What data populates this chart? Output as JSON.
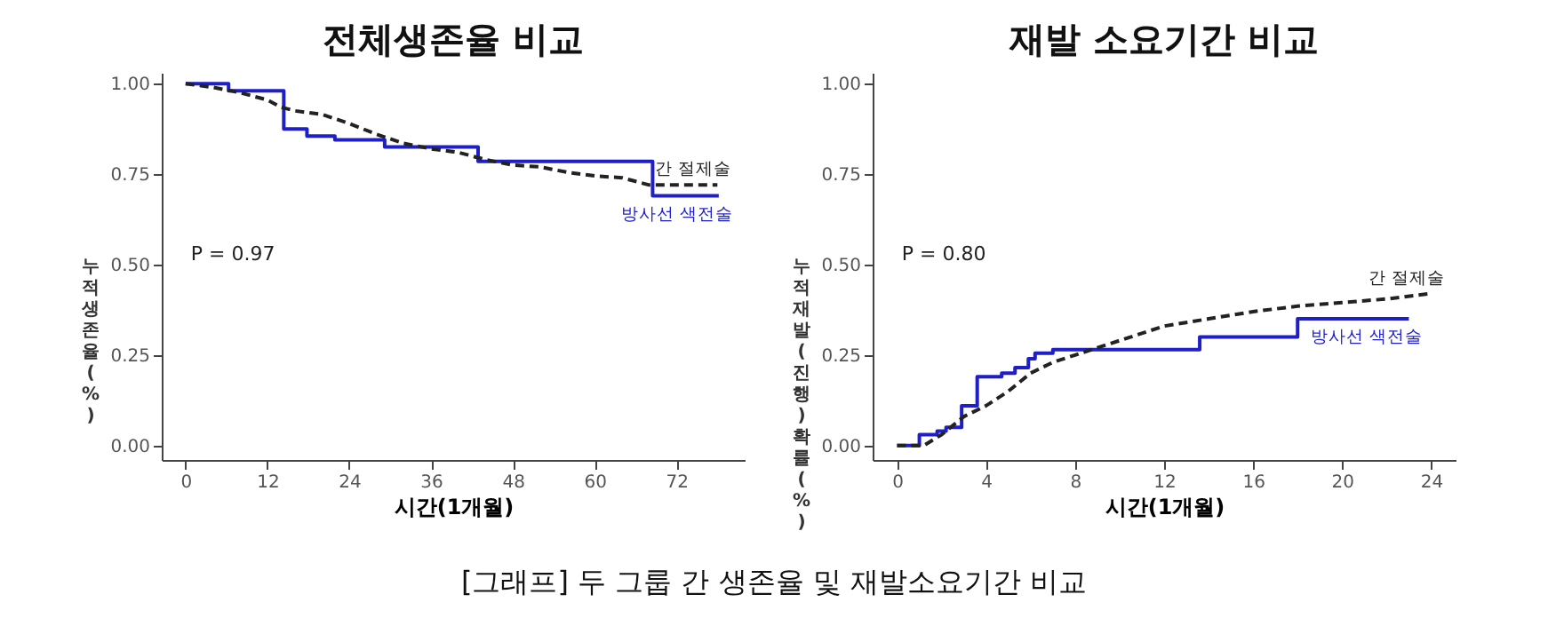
{
  "chart_data": [
    {
      "type": "line",
      "title": "전체생존율 비교",
      "xlabel": "시간(1개월)",
      "ylabel": "누적 생존율 (%)",
      "xlim": [
        -3.5,
        82
      ],
      "ylim": [
        -0.04,
        1.03
      ],
      "xticks": [
        0,
        12,
        24,
        36,
        48,
        60,
        72
      ],
      "yticks": [
        {
          "value": 0,
          "label": "0.00"
        },
        {
          "value": 0.25,
          "label": "0.25"
        },
        {
          "value": 0.5,
          "label": "0.50"
        },
        {
          "value": 0.75,
          "label": "0.75"
        },
        {
          "value": 1,
          "label": "1.00"
        }
      ],
      "grid": false,
      "legend": false,
      "annotations": [
        "P = 0.97"
      ],
      "series": [
        {
          "name": "간 절제술",
          "type": "line",
          "line_style": "dashed",
          "color": "#222222",
          "x": [
            0,
            4,
            8,
            12,
            14,
            16,
            20,
            24,
            28,
            32,
            36,
            40,
            44,
            48,
            52,
            56,
            60,
            64,
            68,
            72,
            78
          ],
          "values": [
            1.0,
            0.99,
            0.975,
            0.955,
            0.935,
            0.925,
            0.915,
            0.89,
            0.86,
            0.835,
            0.82,
            0.81,
            0.79,
            0.775,
            0.77,
            0.755,
            0.745,
            0.74,
            0.72,
            0.72,
            0.72
          ]
        },
        {
          "name": "방사선 색전술",
          "type": "step",
          "line_style": "solid",
          "color": "#1f1fc8",
          "x": [
            0,
            6.3,
            14.4,
            17.8,
            21.9,
            29.2,
            42.9,
            68.5,
            78.2
          ],
          "values": [
            1.0,
            0.98,
            0.875,
            0.855,
            0.845,
            0.825,
            0.785,
            0.69,
            0.69
          ]
        }
      ]
    },
    {
      "type": "line",
      "title": "재발 소요기간 비교",
      "xlabel": "시간(1개월)",
      "ylabel": "누적 재발(진행) 확률 (%)",
      "xlim": [
        -1.1,
        25.1
      ],
      "ylim": [
        -0.04,
        1.03
      ],
      "xticks": [
        0,
        4,
        8,
        12,
        16,
        20,
        24
      ],
      "yticks": [
        {
          "value": 0,
          "label": "0.00"
        },
        {
          "value": 0.25,
          "label": "0.25"
        },
        {
          "value": 0.5,
          "label": "0.50"
        },
        {
          "value": 0.75,
          "label": "0.75"
        },
        {
          "value": 1,
          "label": "1.00"
        }
      ],
      "grid": false,
      "legend": false,
      "annotations": [
        "P = 0.80",
        "[그래프] 두 그룹 간 생존율 및 재발소요기간 비교"
      ],
      "series": [
        {
          "name": "간 절제술",
          "type": "line",
          "line_style": "dashed",
          "color": "#222222",
          "x": [
            0,
            1.2,
            2,
            3,
            4,
            5,
            6,
            7,
            8,
            9,
            10,
            12,
            14,
            16,
            18,
            20,
            22,
            24
          ],
          "values": [
            0,
            0,
            0.03,
            0.08,
            0.11,
            0.15,
            0.2,
            0.23,
            0.25,
            0.27,
            0.29,
            0.33,
            0.35,
            0.37,
            0.385,
            0.395,
            0.405,
            0.42
          ]
        },
        {
          "name": "방사선 색전술",
          "type": "step",
          "line_style": "solid",
          "color": "#1f1fc8",
          "x": [
            0,
            1.0,
            1.8,
            2.2,
            2.9,
            3.6,
            4.7,
            5.3,
            5.9,
            6.2,
            7.0,
            13.6,
            18.0,
            23.0
          ],
          "values": [
            0,
            0.03,
            0.04,
            0.05,
            0.11,
            0.19,
            0.2,
            0.215,
            0.24,
            0.255,
            0.265,
            0.3,
            0.35,
            0.35
          ]
        }
      ]
    }
  ]
}
